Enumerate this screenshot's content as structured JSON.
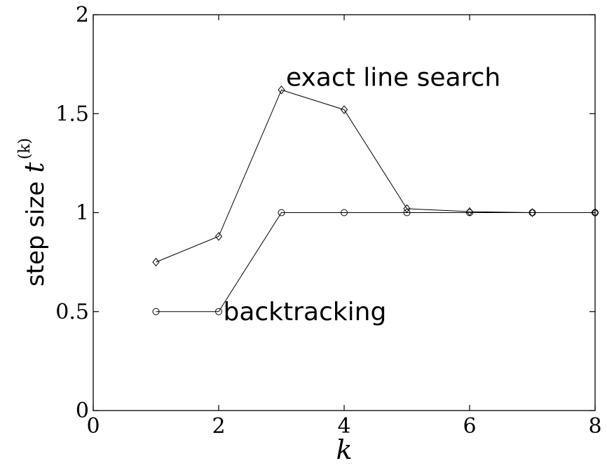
{
  "chart_data": {
    "type": "line",
    "title": "",
    "xlabel": "k",
    "ylabel": "step size",
    "ylabel_math": "t",
    "ylabel_superscript": "(k)",
    "xlim": [
      0,
      8
    ],
    "ylim": [
      0,
      2
    ],
    "xticks": [
      0,
      2,
      4,
      6,
      8
    ],
    "xtick_labels": [
      "0",
      "2",
      "4",
      "6",
      "8"
    ],
    "yticks": [
      0,
      0.5,
      1,
      1.5,
      2
    ],
    "ytick_labels": [
      "0",
      "0.5",
      "1",
      "1.5",
      "2"
    ],
    "grid": false,
    "legend": "none",
    "series": [
      {
        "name": "exact line search",
        "marker": "diamond",
        "x": [
          1,
          2,
          3,
          4,
          5,
          6,
          7,
          8
        ],
        "values": [
          0.75,
          0.88,
          1.62,
          1.52,
          1.02,
          1.005,
          1.0,
          1.0
        ]
      },
      {
        "name": "backtracking",
        "marker": "circle",
        "x": [
          1,
          2,
          3,
          4,
          5,
          6,
          7,
          8
        ],
        "values": [
          0.5,
          0.5,
          1.0,
          1.0,
          1.0,
          1.0,
          1.0,
          1.0
        ]
      }
    ],
    "annotations": [
      {
        "text": "exact line search",
        "x": 3.05,
        "y": 1.62
      },
      {
        "text": "backtracking",
        "x": 2.05,
        "y": 0.5
      }
    ]
  }
}
